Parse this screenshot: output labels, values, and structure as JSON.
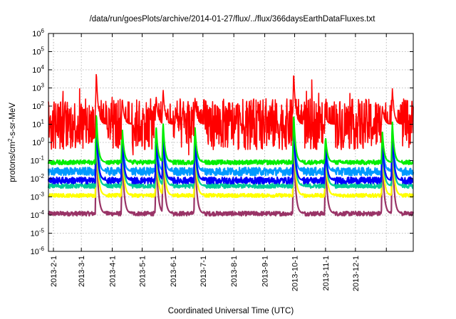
{
  "chart_data": {
    "type": "line",
    "title": "/data/run/goesPlots/archive/2014-01-27/flux/../flux/366daysEarthDataFluxes.txt",
    "xlabel": "Coordinated Universal Time (UTC)",
    "ylabel_parts": [
      "protons/cm",
      "2",
      "-s-sr-MeV"
    ],
    "y_scale": "log",
    "ylim": [
      1e-06,
      1000000.0
    ],
    "xlim": [
      "2013-01-27",
      "2014-01-28"
    ],
    "grid": true,
    "y_ticks": [
      {
        "value": 1e-06,
        "base": "10",
        "exp": "-6"
      },
      {
        "value": 1e-05,
        "base": "10",
        "exp": "-5"
      },
      {
        "value": 0.0001,
        "base": "10",
        "exp": "-4"
      },
      {
        "value": 0.001,
        "base": "10",
        "exp": "-3"
      },
      {
        "value": 0.01,
        "base": "10",
        "exp": "-2"
      },
      {
        "value": 0.1,
        "base": "10",
        "exp": "-1"
      },
      {
        "value": 1.0,
        "base": "10",
        "exp": "0"
      },
      {
        "value": 10.0,
        "base": "10",
        "exp": "1"
      },
      {
        "value": 100.0,
        "base": "10",
        "exp": "2"
      },
      {
        "value": 1000.0,
        "base": "10",
        "exp": "3"
      },
      {
        "value": 10000.0,
        "base": "10",
        "exp": "4"
      },
      {
        "value": 100000.0,
        "base": "10",
        "exp": "5"
      },
      {
        "value": 1000000.0,
        "base": "10",
        "exp": "6"
      }
    ],
    "x_ticks": [
      {
        "date": "2013-02-01",
        "label": "2013-2-1"
      },
      {
        "date": "2013-03-01",
        "label": "2013-3-1"
      },
      {
        "date": "2013-04-01",
        "label": "2013-4-1"
      },
      {
        "date": "2013-05-01",
        "label": "2013-5-1"
      },
      {
        "date": "2013-06-01",
        "label": "2013-6-1"
      },
      {
        "date": "2013-07-01",
        "label": "2013-7-1"
      },
      {
        "date": "2013-08-01",
        "label": "2013-8-1"
      },
      {
        "date": "2013-09-01",
        "label": "2013-9-1"
      },
      {
        "date": "2013-10-01",
        "label": "2013-10-1"
      },
      {
        "date": "2013-11-01",
        "label": "2013-11-1"
      },
      {
        "date": "2013-12-01",
        "label": "2013-12-1"
      },
      {
        "date": "2014-01-01",
        "label": ""
      }
    ],
    "series": [
      {
        "color": "#ff0000",
        "baseline": 10,
        "noise_decades": 1.4,
        "floor": 0.05
      },
      {
        "color": "#00ee00",
        "baseline": 0.08,
        "noise_decades": 0.12,
        "floor": 0.05
      },
      {
        "color": "#0000ff",
        "baseline": 0.008,
        "noise_decades": 0.18,
        "floor": 0.004
      },
      {
        "color": "#0099ff",
        "baseline": 0.025,
        "noise_decades": 0.22,
        "floor": 0.006
      },
      {
        "color": "#00cc99",
        "baseline": 0.004,
        "noise_decades": 0.12,
        "floor": 0.002
      },
      {
        "color": "#ffff00",
        "baseline": 0.0012,
        "noise_decades": 0.1,
        "floor": 0.0006
      },
      {
        "color": "#993366",
        "baseline": 0.00012,
        "noise_decades": 0.12,
        "floor": 5e-05
      }
    ],
    "events": [
      {
        "date": "2013-03-16",
        "peak": 10000
      },
      {
        "date": "2013-04-11",
        "peak": 300
      },
      {
        "date": "2013-05-15",
        "peak": 400
      },
      {
        "date": "2013-05-22",
        "peak": 1000
      },
      {
        "date": "2013-06-23",
        "peak": 300
      },
      {
        "date": "2013-09-30",
        "peak": 10000
      },
      {
        "date": "2013-11-01",
        "peak": 30
      },
      {
        "date": "2013-12-28",
        "peak": 100
      },
      {
        "date": "2014-01-07",
        "peak": 1000
      }
    ]
  }
}
